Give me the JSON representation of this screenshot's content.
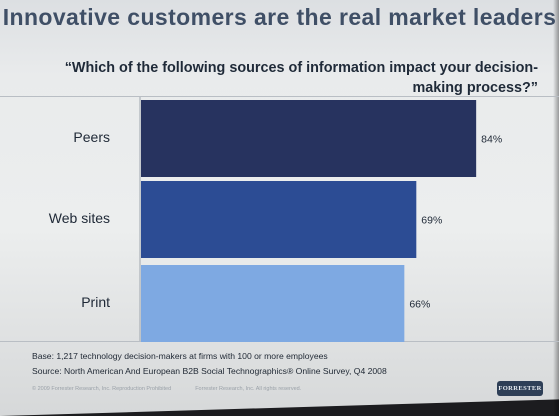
{
  "slide": {
    "title": "Innovative customers are the real market leaders",
    "question": "“Which of the following sources of information impact your decision-making process?”",
    "base_note": "Base: 1,217 technology decision-makers at firms with 100 or more employees",
    "source_note": "Source: North American And European B2B Social Technographics® Online Survey, Q4 2008",
    "copyright": "© 2009 Forrester Research, Inc. Reproduction Prohibited",
    "copyright_rights": "Forrester Research, Inc. All rights reserved.",
    "logo_text": "FORRESTER"
  },
  "chart_data": {
    "type": "bar",
    "orientation": "horizontal",
    "categories": [
      "Peers",
      "Web sites",
      "Print"
    ],
    "values": [
      84,
      69,
      66
    ],
    "value_labels": [
      "84%",
      "69%",
      "66%"
    ],
    "colors": [
      "#27335f",
      "#2c4c94",
      "#7ea9e2"
    ],
    "xlim": [
      0,
      100
    ],
    "title": "",
    "xlabel": "",
    "ylabel": "",
    "grid": false,
    "legend": "none"
  }
}
